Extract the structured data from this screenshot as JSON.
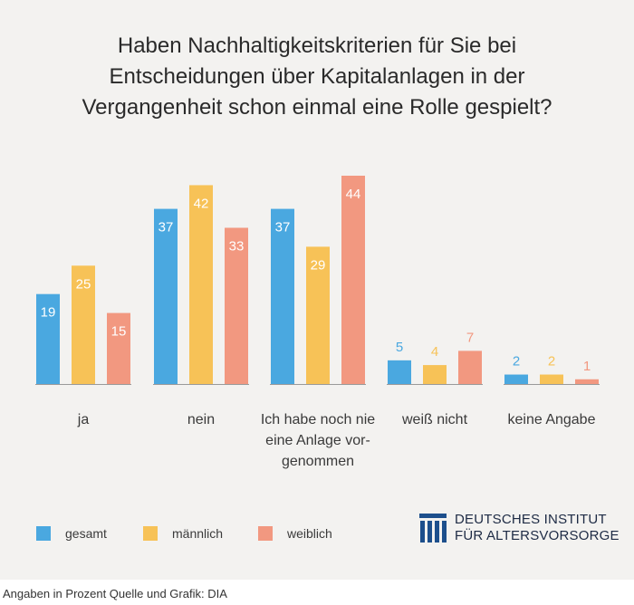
{
  "title_lines": [
    "Haben Nachhaltigkeitskriterien für Sie bei",
    "Entscheidungen über Kapitalanlagen in der",
    "Vergangenheit schon einmal eine Rolle gespielt?"
  ],
  "chart_data": {
    "type": "bar",
    "title": "Haben Nachhaltigkeitskriterien für Sie bei Entscheidungen über Kapitalanlagen in der Vergangenheit schon einmal eine Rolle gespielt?",
    "categories": [
      "ja",
      "nein",
      "Ich habe noch nie eine Anlage vorgenommen",
      "weiß nicht",
      "keine Angabe"
    ],
    "category_label_lines": [
      [
        "ja"
      ],
      [
        "nein"
      ],
      [
        "Ich habe noch nie",
        "eine Anlage vor-",
        "genommen"
      ],
      [
        "weiß nicht"
      ],
      [
        "keine Angabe"
      ]
    ],
    "series": [
      {
        "name": "gesamt",
        "color": "#4aa8e0",
        "values": [
          19,
          37,
          37,
          5,
          2
        ]
      },
      {
        "name": "männlich",
        "color": "#f7c257",
        "values": [
          25,
          42,
          29,
          4,
          2
        ]
      },
      {
        "name": "weiblich",
        "color": "#f29880",
        "values": [
          15,
          33,
          44,
          7,
          1
        ]
      }
    ],
    "unit": "Prozent",
    "ylim": [
      0,
      44
    ],
    "grid": false,
    "legend_position": "bottom-left"
  },
  "logo": {
    "line1": "DEUTSCHES INSTITUT",
    "line2": "FÜR ALTERSVORSORGE",
    "color": "#1d4f8c"
  },
  "footer": "Angaben in Prozent  Quelle und Grafik: DIA"
}
